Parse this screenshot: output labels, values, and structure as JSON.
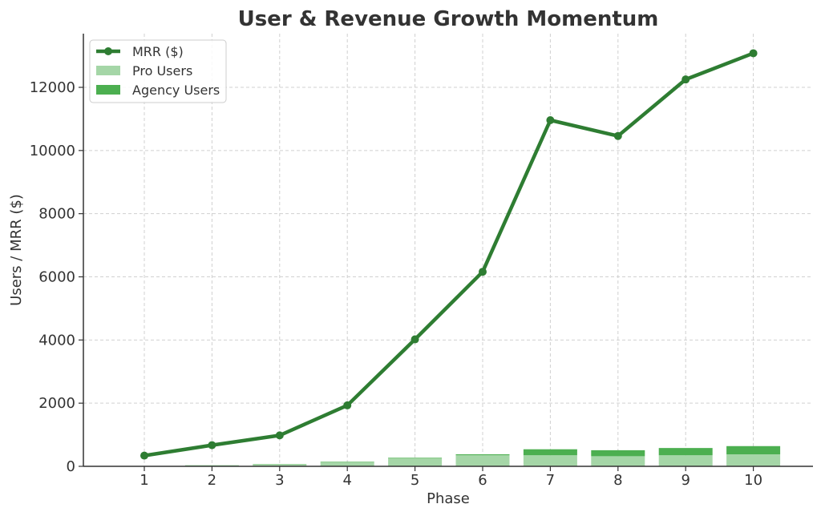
{
  "chart_data": {
    "type": "bar",
    "title": "User & Revenue Growth Momentum",
    "xlabel": "Phase",
    "ylabel": "Users / MRR ($)",
    "categories": [
      "1",
      "2",
      "3",
      "4",
      "5",
      "6",
      "7",
      "8",
      "9",
      "10"
    ],
    "yticks": [
      0,
      2000,
      4000,
      6000,
      8000,
      10000,
      12000
    ],
    "ylim": [
      0,
      13700
    ],
    "grid": true,
    "legend_position": "top-left",
    "series": [
      {
        "name": "MRR ($)",
        "type": "line",
        "color": "#2e7d32",
        "values": [
          340,
          670,
          980,
          1930,
          4020,
          6160,
          10960,
          10460,
          12250,
          13080
        ]
      },
      {
        "name": "Pro Users",
        "type": "bar",
        "stacked": true,
        "color": "#a5d6a7",
        "values": [
          10,
          30,
          60,
          130,
          250,
          350,
          350,
          320,
          350,
          380
        ]
      },
      {
        "name": "Agency Users",
        "type": "bar",
        "stacked": true,
        "color": "#4caf50",
        "values": [
          0,
          5,
          10,
          15,
          20,
          30,
          190,
          190,
          230,
          260
        ]
      }
    ]
  }
}
